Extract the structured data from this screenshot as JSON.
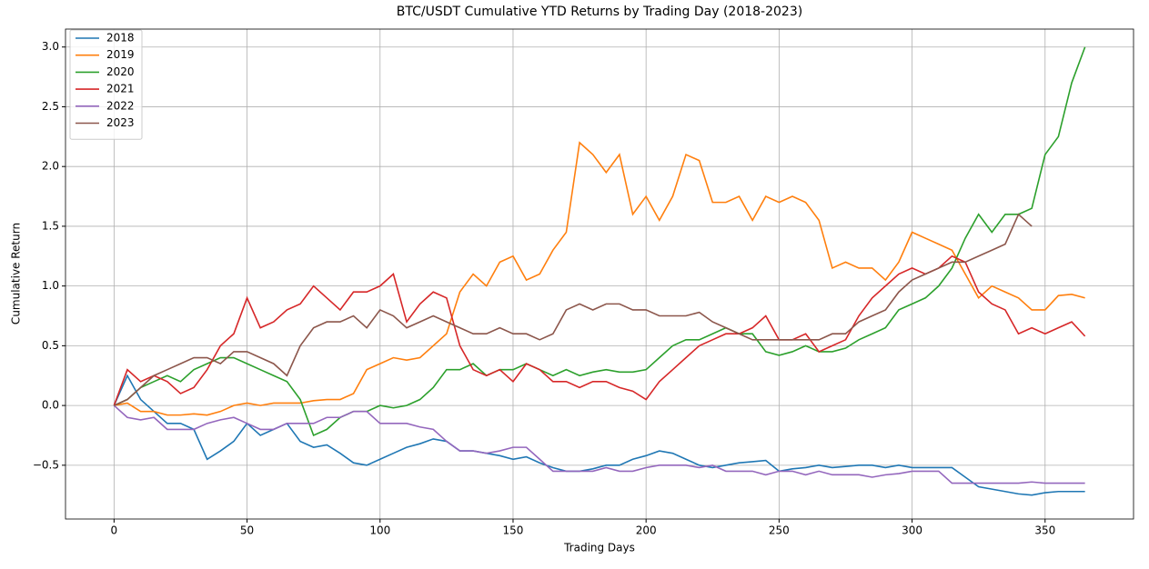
{
  "chart_data": {
    "type": "line",
    "title": "BTC/USDT Cumulative YTD Returns by Trading Day (2018-2023)",
    "x_label": "Trading Days",
    "y_label": "Cumulative Return",
    "xlim": [
      -18.25,
      383.25
    ],
    "ylim": [
      -0.95,
      3.15
    ],
    "xticks": [
      0,
      50,
      100,
      150,
      200,
      250,
      300,
      350
    ],
    "yticks": [
      {
        "value": -0.5,
        "label": "−0.5"
      },
      {
        "value": 0,
        "label": "0.0"
      },
      0.5,
      {
        "value": 1,
        "label": "1.0"
      },
      1.5,
      {
        "value": 2,
        "label": "2.0"
      },
      2.5,
      {
        "value": 3,
        "label": "3.0"
      }
    ],
    "grid": true,
    "legend": "upper left",
    "x": [
      0,
      5,
      10,
      15,
      20,
      25,
      30,
      35,
      40,
      45,
      50,
      55,
      60,
      65,
      70,
      75,
      80,
      85,
      90,
      95,
      100,
      105,
      110,
      115,
      120,
      125,
      130,
      135,
      140,
      145,
      150,
      155,
      160,
      165,
      170,
      175,
      180,
      185,
      190,
      195,
      200,
      205,
      210,
      215,
      220,
      225,
      230,
      235,
      240,
      245,
      250,
      255,
      260,
      265,
      270,
      275,
      280,
      285,
      290,
      295,
      300,
      305,
      310,
      315,
      320,
      325,
      330,
      335,
      340,
      345,
      350,
      355,
      360,
      365
    ],
    "series": [
      {
        "name": "2018",
        "color": "#1f77b4",
        "values": [
          0,
          0.25,
          0.05,
          -0.05,
          -0.15,
          -0.15,
          -0.2,
          -0.45,
          -0.38,
          -0.3,
          -0.15,
          -0.25,
          -0.2,
          -0.15,
          -0.3,
          -0.35,
          -0.33,
          -0.4,
          -0.48,
          -0.5,
          -0.45,
          -0.4,
          -0.35,
          -0.32,
          -0.28,
          -0.3,
          -0.38,
          -0.38,
          -0.4,
          -0.42,
          -0.45,
          -0.43,
          -0.48,
          -0.52,
          -0.55,
          -0.55,
          -0.53,
          -0.5,
          -0.5,
          -0.45,
          -0.42,
          -0.38,
          -0.4,
          -0.45,
          -0.5,
          -0.52,
          -0.5,
          -0.48,
          -0.47,
          -0.46,
          -0.55,
          -0.53,
          -0.52,
          -0.5,
          -0.52,
          -0.51,
          -0.5,
          -0.5,
          -0.52,
          -0.5,
          -0.52,
          -0.52,
          -0.52,
          -0.52,
          -0.6,
          -0.68,
          -0.7,
          -0.72,
          -0.74,
          -0.75,
          -0.73,
          -0.72,
          -0.72,
          -0.72
        ]
      },
      {
        "name": "2019",
        "color": "#ff7f0e",
        "values": [
          0,
          0.02,
          -0.05,
          -0.05,
          -0.08,
          -0.08,
          -0.07,
          -0.08,
          -0.05,
          0,
          0.02,
          0,
          0.02,
          0.02,
          0.02,
          0.04,
          0.05,
          0.05,
          0.1,
          0.3,
          0.35,
          0.4,
          0.38,
          0.4,
          0.5,
          0.6,
          0.95,
          1.1,
          1.0,
          1.2,
          1.25,
          1.05,
          1.1,
          1.3,
          1.45,
          2.2,
          2.1,
          1.95,
          2.1,
          1.6,
          1.75,
          1.55,
          1.75,
          2.1,
          2.05,
          1.7,
          1.7,
          1.75,
          1.55,
          1.75,
          1.7,
          1.75,
          1.7,
          1.55,
          1.15,
          1.2,
          1.15,
          1.15,
          1.05,
          1.2,
          1.45,
          1.4,
          1.35,
          1.3,
          1.1,
          0.9,
          1.0,
          0.95,
          0.9,
          0.8,
          0.8,
          0.92,
          0.93,
          0.9
        ]
      },
      {
        "name": "2020",
        "color": "#2ca02c",
        "values": [
          0,
          0.05,
          0.15,
          0.2,
          0.25,
          0.2,
          0.3,
          0.35,
          0.4,
          0.4,
          0.35,
          0.3,
          0.25,
          0.2,
          0.05,
          -0.25,
          -0.2,
          -0.1,
          -0.05,
          -0.05,
          0,
          -0.02,
          0,
          0.05,
          0.15,
          0.3,
          0.3,
          0.35,
          0.25,
          0.3,
          0.3,
          0.35,
          0.3,
          0.25,
          0.3,
          0.25,
          0.28,
          0.3,
          0.28,
          0.28,
          0.3,
          0.4,
          0.5,
          0.55,
          0.55,
          0.6,
          0.65,
          0.6,
          0.6,
          0.45,
          0.42,
          0.45,
          0.5,
          0.45,
          0.45,
          0.48,
          0.55,
          0.6,
          0.65,
          0.8,
          0.85,
          0.9,
          1.0,
          1.15,
          1.4,
          1.6,
          1.45,
          1.6,
          1.6,
          1.65,
          2.1,
          2.25,
          2.7,
          3.0
        ]
      },
      {
        "name": "2021",
        "color": "#d62728",
        "values": [
          0,
          0.3,
          0.2,
          0.25,
          0.2,
          0.1,
          0.15,
          0.3,
          0.5,
          0.6,
          0.9,
          0.65,
          0.7,
          0.8,
          0.85,
          1.0,
          0.9,
          0.8,
          0.95,
          0.95,
          1.0,
          1.1,
          0.7,
          0.85,
          0.95,
          0.9,
          0.5,
          0.3,
          0.25,
          0.3,
          0.2,
          0.35,
          0.3,
          0.2,
          0.2,
          0.15,
          0.2,
          0.2,
          0.15,
          0.12,
          0.05,
          0.2,
          0.3,
          0.4,
          0.5,
          0.55,
          0.6,
          0.6,
          0.65,
          0.75,
          0.55,
          0.55,
          0.6,
          0.45,
          0.5,
          0.55,
          0.75,
          0.9,
          1.0,
          1.1,
          1.15,
          1.1,
          1.15,
          1.25,
          1.2,
          0.95,
          0.85,
          0.8,
          0.6,
          0.65,
          0.6,
          0.65,
          0.7,
          0.58
        ]
      },
      {
        "name": "2022",
        "color": "#9467bd",
        "values": [
          0,
          -0.1,
          -0.12,
          -0.1,
          -0.2,
          -0.2,
          -0.2,
          -0.15,
          -0.12,
          -0.1,
          -0.15,
          -0.2,
          -0.2,
          -0.15,
          -0.15,
          -0.15,
          -0.1,
          -0.1,
          -0.05,
          -0.05,
          -0.15,
          -0.15,
          -0.15,
          -0.18,
          -0.2,
          -0.3,
          -0.38,
          -0.38,
          -0.4,
          -0.38,
          -0.35,
          -0.35,
          -0.45,
          -0.55,
          -0.55,
          -0.55,
          -0.55,
          -0.52,
          -0.55,
          -0.55,
          -0.52,
          -0.5,
          -0.5,
          -0.5,
          -0.52,
          -0.5,
          -0.55,
          -0.55,
          -0.55,
          -0.58,
          -0.55,
          -0.55,
          -0.58,
          -0.55,
          -0.58,
          -0.58,
          -0.58,
          -0.6,
          -0.58,
          -0.57,
          -0.55,
          -0.55,
          -0.55,
          -0.65,
          -0.65,
          -0.65,
          -0.65,
          -0.65,
          -0.65,
          -0.64,
          -0.65,
          -0.65,
          -0.65,
          -0.65
        ]
      },
      {
        "name": "2023",
        "color": "#8c564b",
        "values": [
          0,
          0.05,
          0.15,
          0.25,
          0.3,
          0.35,
          0.4,
          0.4,
          0.35,
          0.45,
          0.45,
          0.4,
          0.35,
          0.25,
          0.5,
          0.65,
          0.7,
          0.7,
          0.75,
          0.65,
          0.8,
          0.75,
          0.65,
          0.7,
          0.75,
          0.7,
          0.65,
          0.6,
          0.6,
          0.65,
          0.6,
          0.6,
          0.55,
          0.6,
          0.8,
          0.85,
          0.8,
          0.85,
          0.85,
          0.8,
          0.8,
          0.75,
          0.75,
          0.75,
          0.78,
          0.7,
          0.65,
          0.6,
          0.55,
          0.55,
          0.55,
          0.55,
          0.55,
          0.55,
          0.6,
          0.6,
          0.7,
          0.75,
          0.8,
          0.95,
          1.05,
          1.1,
          1.15,
          1.2,
          1.2,
          1.25,
          1.3,
          1.35,
          1.6,
          1.5,
          null,
          null,
          null,
          null
        ]
      }
    ]
  }
}
